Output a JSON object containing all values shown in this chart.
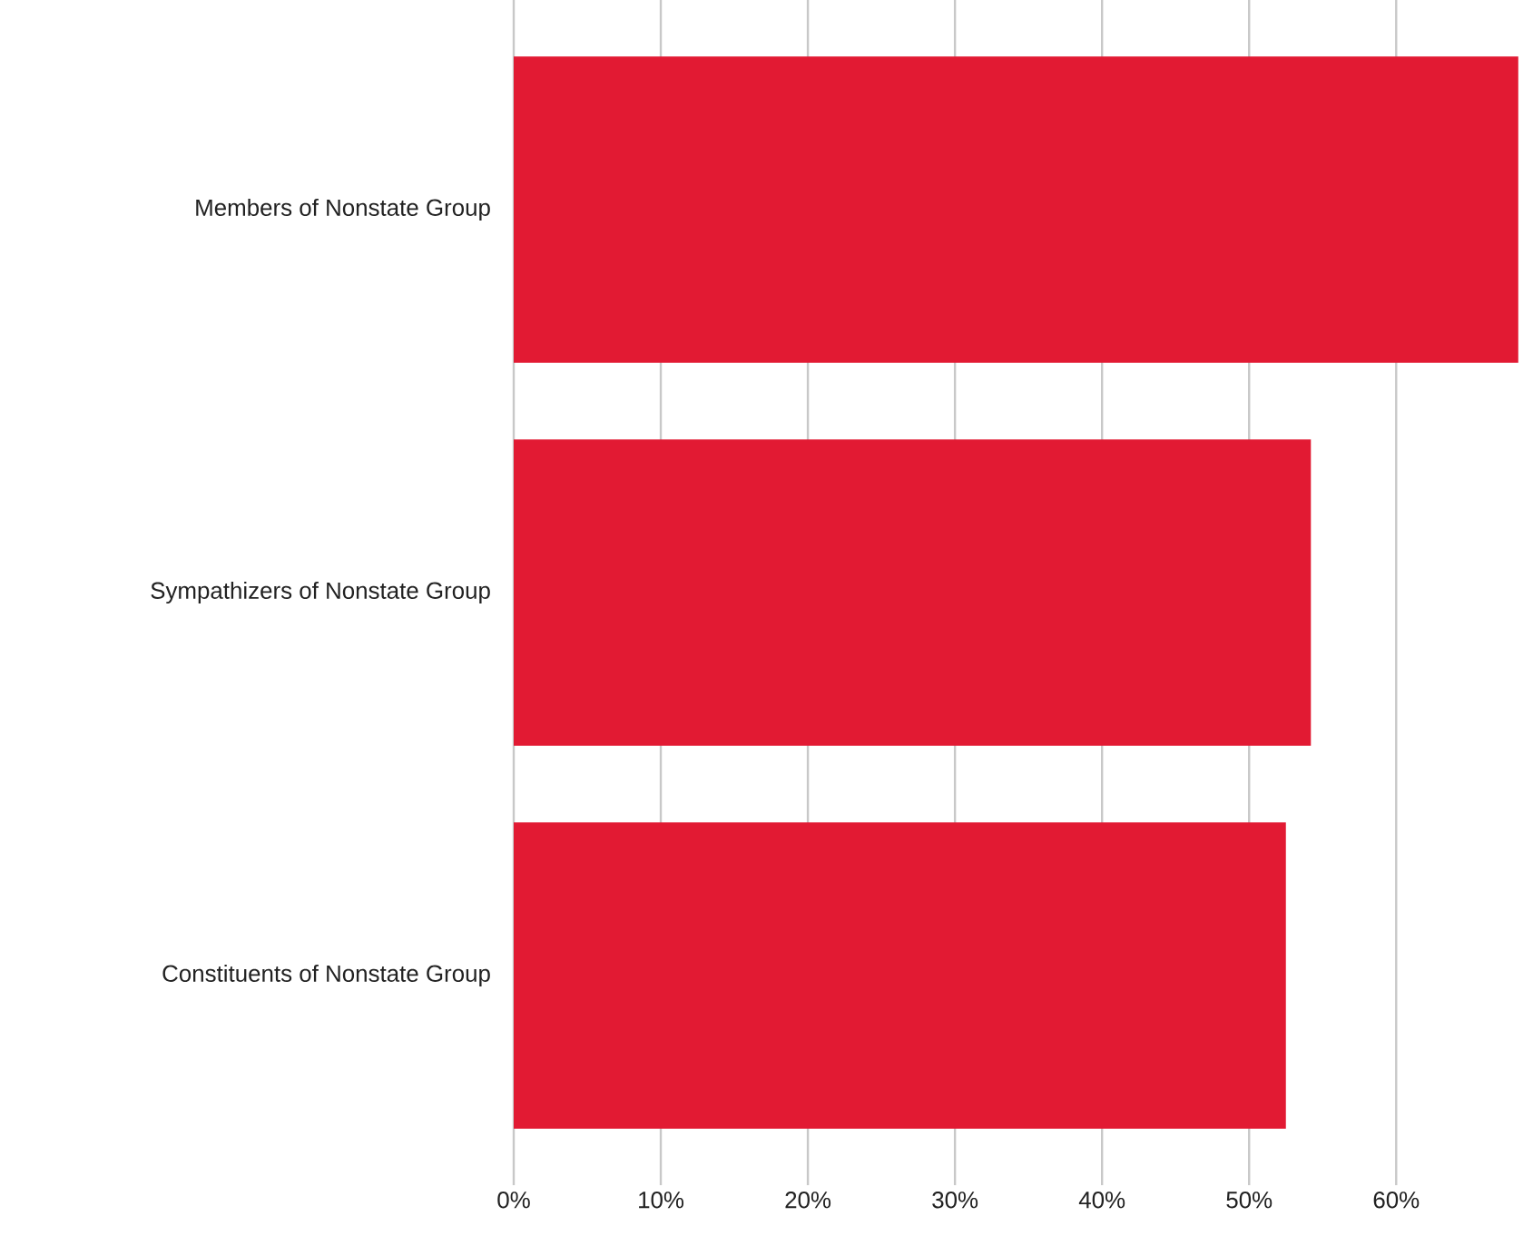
{
  "chart_data": {
    "type": "bar",
    "orientation": "horizontal",
    "categories": [
      "Members of Nonstate Group",
      "Sympathizers of Nonstate Group",
      "Constituents of Nonstate Group"
    ],
    "values": [
      68.3,
      54.2,
      52.5
    ],
    "color": "#e21a33",
    "xlim": [
      0,
      68.5
    ],
    "xticks": [
      {
        "value": 0,
        "label": "0%"
      },
      {
        "value": 10,
        "label": "10%"
      },
      {
        "value": 20,
        "label": "20%"
      },
      {
        "value": 30,
        "label": "30%"
      },
      {
        "value": 40,
        "label": "40%"
      },
      {
        "value": 50,
        "label": "50%"
      },
      {
        "value": 60,
        "label": "60%"
      }
    ],
    "grid": "x"
  }
}
